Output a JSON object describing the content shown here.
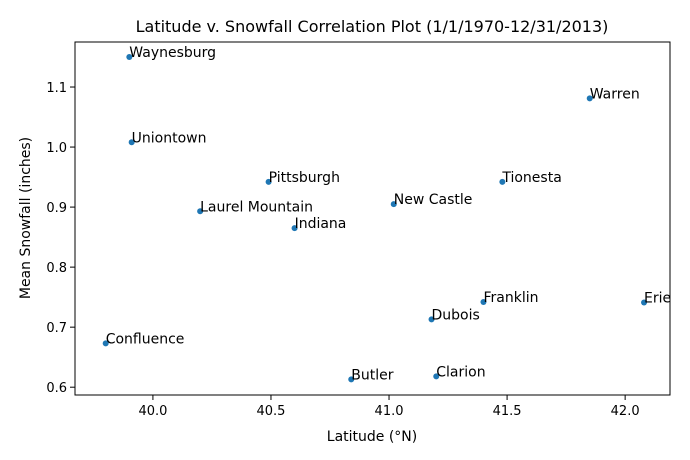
{
  "chart_data": {
    "type": "scatter",
    "title": "Latitude v. Snowfall Correlation Plot (1/1/1970-12/31/2013)",
    "xlabel": "Latitude (°N)",
    "ylabel": "Mean Snowfall (inches)",
    "xlim": [
      39.67,
      42.19
    ],
    "ylim": [
      0.587,
      1.175
    ],
    "xticks": [
      40.0,
      40.5,
      41.0,
      41.5,
      42.0
    ],
    "xtick_labels": [
      "40.0",
      "40.5",
      "41.0",
      "41.5",
      "42.0"
    ],
    "yticks": [
      0.6,
      0.7,
      0.8,
      0.9,
      1.0,
      1.1
    ],
    "ytick_labels": [
      "0.6",
      "0.7",
      "0.8",
      "0.9",
      "1.0",
      "1.1"
    ],
    "grid": false,
    "marker_color": "#1f77b4",
    "points": [
      {
        "label": "Waynesburg",
        "x": 39.9,
        "y": 1.15
      },
      {
        "label": "Uniontown",
        "x": 39.91,
        "y": 1.008
      },
      {
        "label": "Confluence",
        "x": 39.8,
        "y": 0.673
      },
      {
        "label": "Laurel Mountain",
        "x": 40.2,
        "y": 0.893
      },
      {
        "label": "Pittsburgh",
        "x": 40.49,
        "y": 0.942
      },
      {
        "label": "Indiana",
        "x": 40.6,
        "y": 0.865
      },
      {
        "label": "Butler",
        "x": 40.84,
        "y": 0.613
      },
      {
        "label": "New Castle",
        "x": 41.02,
        "y": 0.905
      },
      {
        "label": "Dubois",
        "x": 41.18,
        "y": 0.713
      },
      {
        "label": "Clarion",
        "x": 41.2,
        "y": 0.618
      },
      {
        "label": "Franklin",
        "x": 41.4,
        "y": 0.742
      },
      {
        "label": "Tionesta",
        "x": 41.48,
        "y": 0.942
      },
      {
        "label": "Warren",
        "x": 41.85,
        "y": 1.081
      },
      {
        "label": "Erie",
        "x": 42.08,
        "y": 0.741
      }
    ]
  }
}
